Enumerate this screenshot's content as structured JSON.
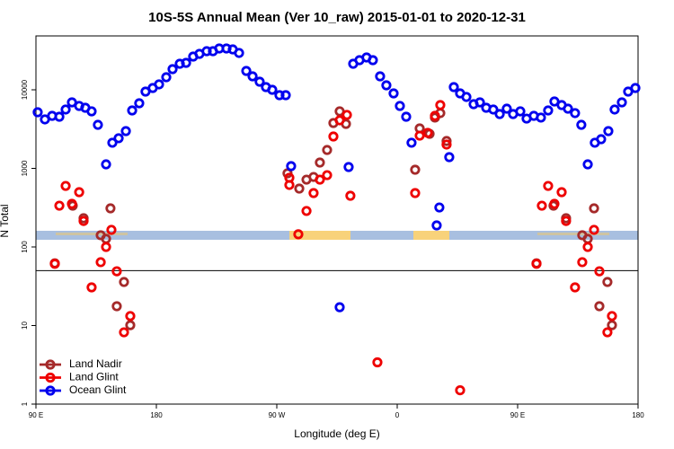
{
  "chart_data": {
    "type": "scatter",
    "title": "10S-5S Annual Mean (Ver 10_raw)   2015-01-01 to 2020-12-31",
    "x_label": "Longitude (deg E)",
    "y_label": "N Total",
    "xlim": [
      90,
      540
    ],
    "ylim": [
      1,
      48500
    ],
    "log_y": true,
    "legend": "lower left",
    "hline": 50,
    "xticks": [
      {
        "value": 90,
        "label": "90 E"
      },
      {
        "value": 180,
        "label": "180"
      },
      {
        "value": 270,
        "label": "90 W"
      },
      {
        "value": 360,
        "label": "0"
      },
      {
        "value": 450,
        "label": "90 E"
      },
      {
        "value": 540,
        "label": "180"
      }
    ],
    "yticks": [
      1,
      10,
      100,
      1000,
      10000
    ],
    "series": [
      {
        "name": "Land Nadir",
        "color": "#a52a2a",
        "x": [
          104.1,
          117.5,
          125.6,
          138.4,
          142.4,
          145.7,
          150.4,
          155.8,
          160.5,
          278.0,
          286.8,
          292.2,
          297.5,
          302.2,
          307.6,
          312.3,
          317.0,
          321.7,
          373.4,
          376.8,
          384.2,
          388.2,
          392.2,
          396.9,
          464.1,
          476.8,
          486.2,
          498.3,
          502.4,
          507.1,
          511.1,
          517.1,
          520.5
        ],
        "values": [
          62,
          335,
          232,
          141,
          127,
          310,
          17.6,
          35.8,
          10.1,
          865,
          553,
          719,
          778,
          1186,
          1714,
          3776,
          5320,
          3680,
          961,
          3225,
          2750,
          4430,
          5050,
          2230,
          62,
          335,
          232,
          141,
          127,
          310,
          17.6,
          35.8,
          10.1
        ]
      },
      {
        "name": "Land Glint",
        "color": "#ee0000",
        "x": [
          104.1,
          107.5,
          112.2,
          116.9,
          122.3,
          125.6,
          131.6,
          138.4,
          142.4,
          146.4,
          150.4,
          155.8,
          160.5,
          279.4,
          279.4,
          286.1,
          292.2,
          297.5,
          302.2,
          307.6,
          312.3,
          317.0,
          322.4,
          325.0,
          345.2,
          373.4,
          376.8,
          382.8,
          388.2,
          392.2,
          396.9,
          407.0,
          464.1,
          468.1,
          472.8,
          477.5,
          482.9,
          486.2,
          492.9,
          498.3,
          502.4,
          507.1,
          511.1,
          517.1,
          520.5
        ],
        "values": [
          61,
          335,
          598,
          354,
          498,
          214,
          30.6,
          64,
          100,
          165,
          49,
          8.2,
          13.2,
          759,
          615,
          145,
          287,
          485,
          719,
          820,
          2545,
          4090,
          4790,
          448,
          3.4,
          485,
          2610,
          2830,
          4660,
          6390,
          2010,
          1.5,
          61,
          335,
          598,
          354,
          498,
          214,
          30.6,
          64,
          100,
          165,
          49,
          8.2,
          13.2
        ]
      },
      {
        "name": "Ocean Glint",
        "color": "#0000ee",
        "x": [
          91.3,
          96.7,
          102.1,
          107.5,
          112.2,
          116.9,
          122.3,
          126.9,
          131.6,
          136.3,
          142.4,
          147.1,
          151.8,
          157.2,
          161.9,
          167.2,
          171.9,
          177.3,
          182.0,
          187.4,
          192.1,
          197.5,
          202.2,
          207.5,
          212.2,
          217.6,
          222.3,
          227.0,
          232.4,
          237.1,
          241.8,
          247.2,
          251.9,
          257.2,
          261.9,
          266.6,
          272.0,
          276.7,
          280.7,
          317.0,
          323.7,
          327.1,
          331.8,
          337.1,
          341.8,
          347.2,
          351.9,
          357.3,
          362.0,
          366.7,
          370.7,
          389.5,
          391.5,
          398.9,
          402.3,
          407.0,
          411.7,
          417.1,
          421.8,
          426.5,
          431.8,
          436.6,
          441.9,
          446.6,
          452.0,
          456.7,
          462.1,
          467.4,
          472.8,
          477.5,
          482.9,
          487.6,
          492.9,
          497.6,
          502.4,
          507.7,
          512.4,
          517.8,
          522.5,
          527.9,
          532.6,
          538.0
        ],
        "values": [
          5180,
          4200,
          4660,
          4540,
          5610,
          6920,
          6230,
          5910,
          5320,
          3580,
          1125,
          2120,
          2420,
          2980,
          5460,
          6740,
          9490,
          10540,
          11720,
          14450,
          18320,
          21440,
          22020,
          26480,
          28640,
          30980,
          30980,
          33560,
          33560,
          32660,
          29440,
          17380,
          14840,
          12670,
          10820,
          10000,
          8540,
          8540,
          1068,
          17.1,
          1040,
          21440,
          23830,
          25780,
          23830,
          14840,
          11410,
          9000,
          6230,
          4540,
          2120,
          188,
          318,
          1390,
          10820,
          9000,
          8110,
          6560,
          6920,
          5910,
          5610,
          4910,
          5750,
          4910,
          5320,
          4300,
          4660,
          4430,
          5460,
          7100,
          6390,
          5750,
          5050,
          3580,
          1125,
          2120,
          2350,
          2980,
          5610,
          6920,
          9490,
          10540
        ]
      }
    ]
  }
}
